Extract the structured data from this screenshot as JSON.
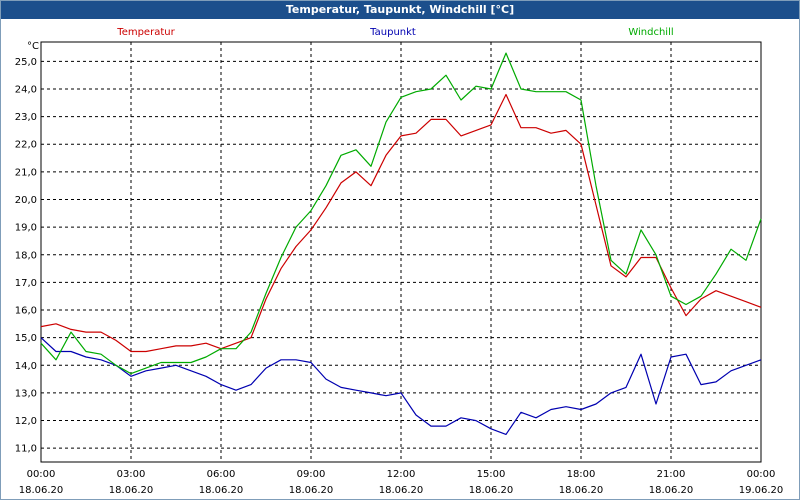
{
  "window": {
    "title": "Temperatur, Taupunkt, Windchill [°C]"
  },
  "chart_data": {
    "type": "line",
    "title": "Temperatur, Taupunkt, Windchill [°C]",
    "ylabel": "°C",
    "xlabel": "",
    "ylim": [
      10.5,
      25.7
    ],
    "xlim": [
      0,
      24
    ],
    "grid": true,
    "legend": "top",
    "y_ticks": [
      "11,0",
      "12,0",
      "13,0",
      "14,0",
      "15,0",
      "16,0",
      "17,0",
      "18,0",
      "19,0",
      "20,0",
      "21,0",
      "22,0",
      "23,0",
      "24,0",
      "25,0"
    ],
    "x_ticks": [
      {
        "time": "00:00",
        "date": "18.06.20"
      },
      {
        "time": "03:00",
        "date": "18.06.20"
      },
      {
        "time": "06:00",
        "date": "18.06.20"
      },
      {
        "time": "09:00",
        "date": "18.06.20"
      },
      {
        "time": "12:00",
        "date": "18.06.20"
      },
      {
        "time": "15:00",
        "date": "18.06.20"
      },
      {
        "time": "18:00",
        "date": "18.06.20"
      },
      {
        "time": "21:00",
        "date": "18.06.20"
      },
      {
        "time": "00:00",
        "date": "19.06.20"
      }
    ],
    "x_unit": "hours since 18.06.20 00:00",
    "series": [
      {
        "name": "Temperatur",
        "color": "#cc0000",
        "x": [
          0,
          0.5,
          1,
          1.5,
          2,
          2.5,
          3,
          3.5,
          4,
          4.5,
          5,
          5.5,
          6,
          6.5,
          7,
          7.5,
          8,
          8.5,
          9,
          9.5,
          10,
          10.5,
          11,
          11.5,
          12,
          12.5,
          13,
          13.5,
          14,
          14.5,
          15,
          15.5,
          16,
          16.5,
          17,
          17.5,
          18,
          18.5,
          19,
          19.5,
          20,
          20.5,
          21,
          21.5,
          22,
          22.5,
          23,
          23.5,
          24
        ],
        "values": [
          15.4,
          15.5,
          15.3,
          15.2,
          15.2,
          14.9,
          14.5,
          14.5,
          14.6,
          14.7,
          14.7,
          14.8,
          14.6,
          14.8,
          15.0,
          16.4,
          17.5,
          18.3,
          18.9,
          19.7,
          20.6,
          21.0,
          20.5,
          21.6,
          22.3,
          22.4,
          22.9,
          22.9,
          22.3,
          22.5,
          22.7,
          23.8,
          22.6,
          22.6,
          22.4,
          22.5,
          22.0,
          19.8,
          17.6,
          17.2,
          17.9,
          17.9,
          16.8,
          15.8,
          16.4,
          16.7,
          16.5,
          16.3,
          16.1
        ]
      },
      {
        "name": "Taupunkt",
        "color": "#0000b0",
        "x": [
          0,
          0.5,
          1,
          1.5,
          2,
          2.5,
          3,
          3.5,
          4,
          4.5,
          5,
          5.5,
          6,
          6.5,
          7,
          7.5,
          8,
          8.5,
          9,
          9.5,
          10,
          10.5,
          11,
          11.5,
          12,
          12.5,
          13,
          13.5,
          14,
          14.5,
          15,
          15.5,
          16,
          16.5,
          17,
          17.5,
          18,
          18.5,
          19,
          19.5,
          20,
          20.5,
          21,
          21.5,
          22,
          22.5,
          23,
          23.5,
          24
        ],
        "values": [
          15.0,
          14.5,
          14.5,
          14.3,
          14.2,
          14.0,
          13.6,
          13.8,
          13.9,
          14.0,
          13.8,
          13.6,
          13.3,
          13.1,
          13.3,
          13.9,
          14.2,
          14.2,
          14.1,
          13.5,
          13.2,
          13.1,
          13.0,
          12.9,
          13.0,
          12.2,
          11.8,
          11.8,
          12.1,
          12.0,
          11.7,
          11.5,
          12.3,
          12.1,
          12.4,
          12.5,
          12.4,
          12.6,
          13.0,
          13.2,
          14.4,
          12.6,
          14.3,
          14.4,
          13.3,
          13.4,
          13.8,
          14.0,
          14.2
        ]
      },
      {
        "name": "Windchill",
        "color": "#00aa00",
        "x": [
          0,
          0.5,
          1,
          1.5,
          2,
          2.5,
          3,
          3.5,
          4,
          4.5,
          5,
          5.5,
          6,
          6.5,
          7,
          7.5,
          8,
          8.5,
          9,
          9.5,
          10,
          10.5,
          11,
          11.5,
          12,
          12.5,
          13,
          13.5,
          14,
          14.5,
          15,
          15.5,
          16,
          16.5,
          17,
          17.5,
          18,
          18.5,
          19,
          19.5,
          20,
          20.5,
          21,
          21.5,
          22,
          22.5,
          23,
          23.5,
          24
        ],
        "values": [
          14.8,
          14.2,
          15.2,
          14.5,
          14.4,
          14.0,
          13.7,
          13.9,
          14.1,
          14.1,
          14.1,
          14.3,
          14.6,
          14.6,
          15.2,
          16.6,
          17.9,
          19.0,
          19.6,
          20.5,
          21.6,
          21.8,
          21.2,
          22.8,
          23.7,
          23.9,
          24.0,
          24.5,
          23.6,
          24.1,
          24.0,
          25.3,
          24.0,
          23.9,
          23.9,
          23.9,
          23.6,
          20.5,
          17.8,
          17.3,
          18.9,
          18.0,
          16.5,
          16.2,
          16.5,
          17.3,
          18.2,
          17.8,
          19.3
        ]
      }
    ]
  }
}
